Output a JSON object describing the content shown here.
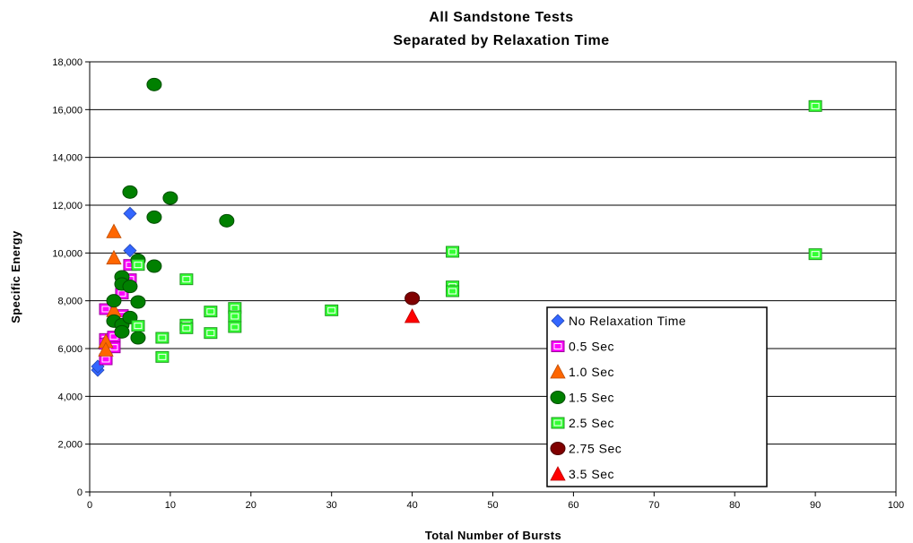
{
  "chart_data": {
    "type": "scatter",
    "title": "All Sandstone Tests",
    "subtitle": "Separated by Relaxation Time",
    "xlabel": "Total Number of Bursts",
    "ylabel": "Specific Energy",
    "xlim": [
      0,
      100
    ],
    "ylim": [
      0,
      18000
    ],
    "x_ticks": [
      0,
      10,
      20,
      30,
      40,
      50,
      60,
      70,
      80,
      90,
      100
    ],
    "y_ticks": [
      0,
      2000,
      4000,
      6000,
      8000,
      10000,
      12000,
      14000,
      16000,
      18000
    ],
    "x_tick_labels": [
      "0",
      "10",
      "20",
      "30",
      "40",
      "50",
      "60",
      "70",
      "80",
      "90",
      "100"
    ],
    "y_tick_labels": [
      "0",
      "2,000",
      "4,000",
      "6,000",
      "8,000",
      "10,000",
      "12,000",
      "14,000",
      "16,000",
      "18,000"
    ],
    "grid": "horizontal",
    "legend_position": "bottom-right",
    "series": [
      {
        "name": "No Relaxation Time",
        "marker": "diamond",
        "color": "#3366ff",
        "points": [
          [
            1,
            5100
          ],
          [
            1,
            5250
          ],
          [
            5,
            11650
          ],
          [
            5,
            10100
          ]
        ]
      },
      {
        "name": "0.5 Sec",
        "marker": "square",
        "color": "#ff00ff",
        "points": [
          [
            2,
            7650
          ],
          [
            2,
            6400
          ],
          [
            2,
            6200
          ],
          [
            2,
            5550
          ],
          [
            3,
            6500
          ],
          [
            3,
            6050
          ],
          [
            4,
            7400
          ],
          [
            4,
            8300
          ],
          [
            5,
            9500
          ],
          [
            5,
            8900
          ]
        ]
      },
      {
        "name": "1.0 Sec",
        "marker": "triangle",
        "color": "#ff6600",
        "points": [
          [
            3,
            10900
          ],
          [
            3,
            9800
          ],
          [
            2,
            6300
          ],
          [
            2,
            5950
          ],
          [
            3,
            7600
          ]
        ]
      },
      {
        "name": "1.5 Sec",
        "marker": "circle",
        "color": "#008000",
        "points": [
          [
            8,
            17050
          ],
          [
            5,
            12550
          ],
          [
            10,
            12300
          ],
          [
            8,
            11500
          ],
          [
            17,
            11350
          ],
          [
            6,
            9700
          ],
          [
            8,
            9450
          ],
          [
            4,
            9000
          ],
          [
            4,
            8700
          ],
          [
            5,
            8600
          ],
          [
            3,
            8000
          ],
          [
            6,
            7950
          ],
          [
            3,
            7150
          ],
          [
            4,
            7000
          ],
          [
            5,
            7300
          ],
          [
            4,
            6700
          ],
          [
            6,
            6450
          ]
        ]
      },
      {
        "name": "2.5 Sec",
        "marker": "square",
        "color": "#33ff33",
        "points": [
          [
            90,
            16150
          ],
          [
            90,
            9950
          ],
          [
            45,
            10050
          ],
          [
            45,
            8600
          ],
          [
            45,
            8400
          ],
          [
            6,
            9500
          ],
          [
            12,
            8900
          ],
          [
            12,
            7000
          ],
          [
            12,
            6850
          ],
          [
            15,
            7550
          ],
          [
            15,
            6650
          ],
          [
            18,
            7700
          ],
          [
            18,
            7350
          ],
          [
            18,
            6900
          ],
          [
            30,
            7600
          ],
          [
            9,
            6450
          ],
          [
            9,
            5650
          ],
          [
            6,
            6950
          ]
        ]
      },
      {
        "name": "2.75 Sec",
        "marker": "circle",
        "color": "#800000",
        "points": [
          [
            40,
            8100
          ]
        ]
      },
      {
        "name": "3.5 Sec",
        "marker": "triangle",
        "color": "#ff0000",
        "points": [
          [
            40,
            7350
          ]
        ]
      }
    ]
  }
}
